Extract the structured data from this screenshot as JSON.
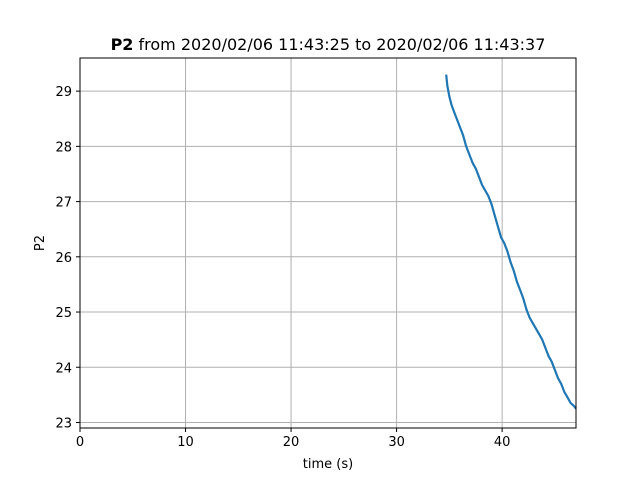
{
  "chart_data": {
    "type": "line",
    "title_bold": "P2",
    "title_rest": " from 2020/02/06 11:43:25 to 2020/02/06 11:43:37",
    "xlabel": "time (s)",
    "ylabel": "P2",
    "xlim": [
      0,
      47
    ],
    "ylim": [
      22.9,
      29.6
    ],
    "xticks": [
      0,
      10,
      20,
      30,
      40
    ],
    "yticks": [
      23,
      24,
      25,
      26,
      27,
      28,
      29
    ],
    "grid": true,
    "series": [
      {
        "color": "#1f77b4",
        "x": [
          34.7,
          34.8,
          35.0,
          35.2,
          35.5,
          35.8,
          36.0,
          36.3,
          36.6,
          36.9,
          37.2,
          37.5,
          37.8,
          38.1,
          38.4,
          38.7,
          39.0,
          39.3,
          39.6,
          39.9,
          40.2,
          40.5,
          40.8,
          41.1,
          41.4,
          41.7,
          42.0,
          42.3,
          42.6,
          42.9,
          43.2,
          43.5,
          43.8,
          44.1,
          44.4,
          44.7,
          45.0,
          45.3,
          45.6,
          45.9,
          46.2,
          46.5,
          46.8,
          47.0
        ],
        "y": [
          29.3,
          29.1,
          28.9,
          28.75,
          28.6,
          28.45,
          28.35,
          28.2,
          28.0,
          27.85,
          27.7,
          27.6,
          27.45,
          27.3,
          27.2,
          27.1,
          26.95,
          26.75,
          26.55,
          26.35,
          26.25,
          26.1,
          25.9,
          25.75,
          25.55,
          25.4,
          25.25,
          25.05,
          24.9,
          24.8,
          24.7,
          24.6,
          24.5,
          24.35,
          24.2,
          24.1,
          23.95,
          23.8,
          23.7,
          23.55,
          23.45,
          23.35,
          23.3,
          23.25
        ]
      }
    ]
  }
}
